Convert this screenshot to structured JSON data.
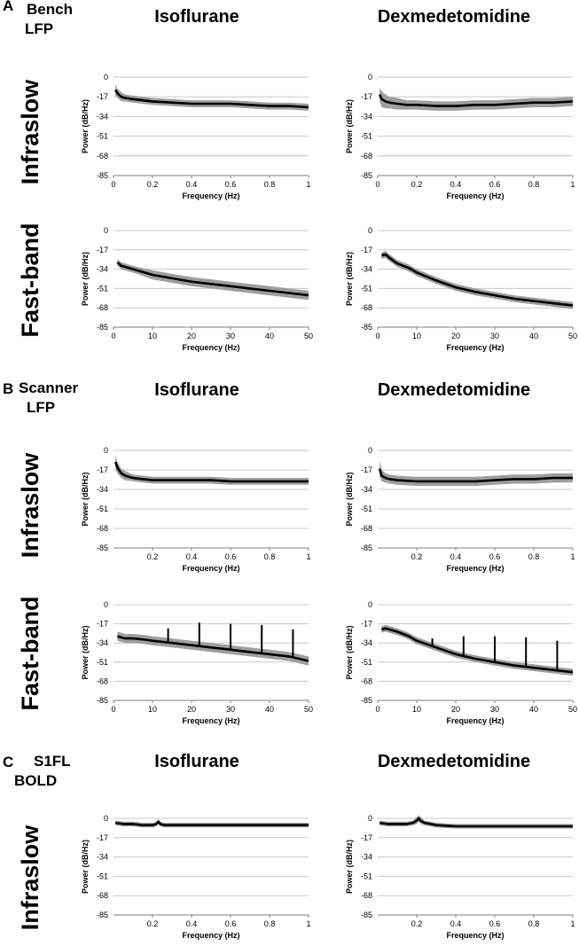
{
  "figure": {
    "sections": [
      {
        "letter": "A",
        "label_lines": [
          "Bench",
          "LFP"
        ]
      },
      {
        "letter": "B",
        "label_lines": [
          "Scanner",
          "LFP"
        ]
      },
      {
        "letter": "C",
        "label_lines": [
          "S1FL",
          "BOLD"
        ]
      }
    ],
    "columns": [
      "Isoflurane",
      "Dexmedetomidine"
    ],
    "rows": [
      "Infraslow",
      "Fast-band",
      "Infraslow",
      "Fast-band",
      "Infraslow"
    ],
    "colors": {
      "mean": "#000000",
      "band": "#9e9e9e",
      "grid": "#c8c8c8",
      "axis": "#7f7f7f"
    }
  },
  "chart_data": [
    {
      "id": "A-iso-infra",
      "type": "line",
      "section": "A",
      "anesthetic": "Isoflurane",
      "band": "Infraslow",
      "xlabel": "Frequency (Hz)",
      "ylabel": "Power (dB/Hz)",
      "xlim": [
        0,
        1
      ],
      "ylim": [
        -85,
        0
      ],
      "xticks": [
        0,
        0.2,
        0.4,
        0.6,
        0.8,
        1
      ],
      "xtick_labels": [
        "0",
        "0.2",
        "0.4",
        "0.6",
        "0.8",
        "1"
      ],
      "yticks": [
        0,
        -17,
        -34,
        -51,
        -68,
        -85
      ],
      "ytick_labels": [
        "0",
        "-17",
        "-34",
        "-51",
        "-68",
        "-85"
      ],
      "x": [
        0.01,
        0.02,
        0.04,
        0.06,
        0.1,
        0.2,
        0.3,
        0.4,
        0.5,
        0.6,
        0.7,
        0.8,
        0.9,
        1.0
      ],
      "mean": [
        -11,
        -14,
        -17,
        -18,
        -19,
        -21,
        -22,
        -23,
        -23,
        -23,
        -24,
        -25,
        -25,
        -26
      ],
      "spread": [
        5,
        4,
        4,
        3,
        3,
        3,
        3,
        3,
        3,
        3,
        3,
        3,
        3,
        3
      ]
    },
    {
      "id": "A-dex-infra",
      "type": "line",
      "section": "A",
      "anesthetic": "Dexmedetomidine",
      "band": "Infraslow",
      "xlabel": "Frequency (Hz)",
      "ylabel": "Power (dB/Hz)",
      "xlim": [
        0,
        1
      ],
      "ylim": [
        -85,
        0
      ],
      "xticks": [
        0,
        0.2,
        0.4,
        0.6,
        0.8,
        1
      ],
      "xtick_labels": [
        "0",
        "0.2",
        "0.4",
        "0.6",
        "0.8",
        "1"
      ],
      "yticks": [
        0,
        -17,
        -34,
        -51,
        -68,
        -85
      ],
      "ytick_labels": [
        "0",
        "-17",
        "-34",
        "-51",
        "-68",
        "-85"
      ],
      "x": [
        0.01,
        0.02,
        0.04,
        0.06,
        0.1,
        0.15,
        0.2,
        0.3,
        0.4,
        0.5,
        0.6,
        0.7,
        0.8,
        0.9,
        1.0
      ],
      "mean": [
        -15,
        -19,
        -21,
        -22,
        -23,
        -24,
        -24,
        -25,
        -25,
        -24,
        -24,
        -23,
        -22,
        -22,
        -21
      ],
      "spread": [
        6,
        7,
        6,
        5,
        5,
        4,
        4,
        4,
        4,
        4,
        4,
        4,
        4,
        4,
        4
      ]
    },
    {
      "id": "A-iso-fast",
      "type": "line",
      "section": "A",
      "anesthetic": "Isoflurane",
      "band": "Fast-band",
      "xlabel": "Frequency (Hz)",
      "ylabel": "Power (dB/Hz)",
      "xlim": [
        0,
        50
      ],
      "ylim": [
        -85,
        0
      ],
      "xticks": [
        0,
        10,
        20,
        30,
        40,
        50
      ],
      "xtick_labels": [
        "0",
        "10",
        "20",
        "30",
        "40",
        "50"
      ],
      "yticks": [
        0,
        -17,
        -34,
        -51,
        -68,
        -85
      ],
      "ytick_labels": [
        "0",
        "-17",
        "-34",
        "-51",
        "-68",
        "-85"
      ],
      "x": [
        1,
        2,
        4,
        6,
        10,
        15,
        20,
        25,
        30,
        35,
        40,
        45,
        50
      ],
      "mean": [
        -28,
        -31,
        -33,
        -35,
        -39,
        -42,
        -45,
        -47,
        -49,
        -51,
        -53,
        -55,
        -57
      ],
      "spread": [
        3,
        3,
        3,
        3,
        4,
        4,
        4,
        4,
        4,
        4,
        4,
        4,
        4
      ]
    },
    {
      "id": "A-dex-fast",
      "type": "line",
      "section": "A",
      "anesthetic": "Dexmedetomidine",
      "band": "Fast-band",
      "xlabel": "Frequency (Hz)",
      "ylabel": "Power (dB/Hz)",
      "xlim": [
        0,
        50
      ],
      "ylim": [
        -85,
        0
      ],
      "xticks": [
        0,
        10,
        20,
        30,
        40,
        50
      ],
      "xtick_labels": [
        "0",
        "10",
        "20",
        "30",
        "40",
        "50"
      ],
      "yticks": [
        0,
        -17,
        -34,
        -51,
        -68,
        -85
      ],
      "ytick_labels": [
        "0",
        "-17",
        "-34",
        "-51",
        "-68",
        "-85"
      ],
      "x": [
        1,
        2,
        3,
        5,
        8,
        10,
        15,
        20,
        25,
        30,
        35,
        40,
        45,
        50
      ],
      "mean": [
        -22,
        -21,
        -24,
        -29,
        -33,
        -37,
        -44,
        -50,
        -54,
        -57,
        -60,
        -62,
        -64,
        -66
      ],
      "spread": [
        3,
        3,
        3,
        3,
        3,
        3,
        3,
        3,
        3,
        3,
        3,
        3,
        3,
        3
      ]
    },
    {
      "id": "B-iso-infra",
      "type": "line",
      "section": "B",
      "anesthetic": "Isoflurane",
      "band": "Infraslow",
      "xlabel": "Frequency (Hz)",
      "ylabel": "Power (dB/Hz)",
      "xlim": [
        0,
        1
      ],
      "ylim": [
        -85,
        0
      ],
      "xticks": [
        0.2,
        0.4,
        0.6,
        0.8,
        1
      ],
      "xtick_labels": [
        "0.2",
        "0.4",
        "0.6",
        "0.8",
        "1"
      ],
      "yticks": [
        0,
        -17,
        -34,
        -51,
        -68,
        -85
      ],
      "ytick_labels": [
        "0",
        "-17",
        "-34",
        "-51",
        "-68",
        "-85"
      ],
      "x": [
        0.01,
        0.02,
        0.04,
        0.06,
        0.1,
        0.15,
        0.2,
        0.3,
        0.4,
        0.5,
        0.6,
        0.7,
        0.8,
        0.9,
        1.0
      ],
      "mean": [
        -10,
        -15,
        -20,
        -22,
        -24,
        -25,
        -26,
        -26,
        -26,
        -26,
        -27,
        -27,
        -27,
        -27,
        -27
      ],
      "spread": [
        6,
        5,
        4,
        4,
        3,
        3,
        3,
        3,
        3,
        3,
        3,
        3,
        3,
        3,
        3
      ]
    },
    {
      "id": "B-dex-infra",
      "type": "line",
      "section": "B",
      "anesthetic": "Dexmedetomidine",
      "band": "Infraslow",
      "xlabel": "Frequency (Hz)",
      "ylabel": "Power (dB/Hz)",
      "xlim": [
        0,
        1
      ],
      "ylim": [
        -85,
        0
      ],
      "xticks": [
        0.2,
        0.4,
        0.6,
        0.8,
        1
      ],
      "xtick_labels": [
        "0.2",
        "0.4",
        "0.6",
        "0.8",
        "1"
      ],
      "yticks": [
        0,
        -17,
        -34,
        -51,
        -68,
        -85
      ],
      "ytick_labels": [
        "0",
        "-17",
        "-34",
        "-51",
        "-68",
        "-85"
      ],
      "x": [
        0.01,
        0.02,
        0.04,
        0.06,
        0.1,
        0.2,
        0.3,
        0.4,
        0.5,
        0.6,
        0.7,
        0.8,
        0.9,
        1.0
      ],
      "mean": [
        -16,
        -22,
        -24,
        -25,
        -26,
        -27,
        -27,
        -27,
        -27,
        -26,
        -25,
        -25,
        -24,
        -24
      ],
      "spread": [
        7,
        5,
        4,
        4,
        4,
        4,
        4,
        4,
        4,
        4,
        4,
        4,
        4,
        4
      ]
    },
    {
      "id": "B-iso-fast",
      "type": "line",
      "section": "B",
      "anesthetic": "Isoflurane",
      "band": "Fast-band",
      "xlabel": "Frequency (Hz)",
      "ylabel": "Power (dB/Hz)",
      "xlim": [
        0,
        50
      ],
      "ylim": [
        -85,
        0
      ],
      "xticks": [
        0,
        10,
        20,
        30,
        40,
        50
      ],
      "xtick_labels": [
        "0",
        "10",
        "20",
        "30",
        "40",
        "50"
      ],
      "yticks": [
        0,
        -17,
        -34,
        -51,
        -68,
        -85
      ],
      "ytick_labels": [
        "0",
        "-17",
        "-34",
        "-51",
        "-68",
        "-85"
      ],
      "x": [
        1,
        3,
        5,
        8,
        10,
        15,
        20,
        25,
        30,
        35,
        40,
        45,
        50
      ],
      "mean": [
        -28,
        -30,
        -30,
        -31,
        -32,
        -34,
        -36,
        -38,
        -40,
        -42,
        -44,
        -46,
        -50
      ],
      "spread": [
        4,
        4,
        4,
        4,
        4,
        4,
        4,
        4,
        4,
        4,
        4,
        4,
        4
      ],
      "spikes": [
        {
          "x": 14,
          "peak": -21
        },
        {
          "x": 22,
          "peak": -16
        },
        {
          "x": 30,
          "peak": -17
        },
        {
          "x": 38,
          "peak": -18
        },
        {
          "x": 46,
          "peak": -22
        }
      ]
    },
    {
      "id": "B-dex-fast",
      "type": "line",
      "section": "B",
      "anesthetic": "Dexmedetomidine",
      "band": "Fast-band",
      "xlabel": "Frequency (Hz)",
      "ylabel": "Power (dB/Hz)",
      "xlim": [
        0,
        50
      ],
      "ylim": [
        -85,
        0
      ],
      "xticks": [
        0,
        10,
        20,
        30,
        40,
        50
      ],
      "xtick_labels": [
        "0",
        "10",
        "20",
        "30",
        "40",
        "50"
      ],
      "yticks": [
        0,
        -17,
        -34,
        -51,
        -68,
        -85
      ],
      "ytick_labels": [
        "0",
        "-17",
        "-34",
        "-51",
        "-68",
        "-85"
      ],
      "x": [
        1,
        2,
        3,
        5,
        8,
        10,
        15,
        20,
        25,
        30,
        35,
        40,
        45,
        50
      ],
      "mean": [
        -22,
        -21,
        -22,
        -24,
        -28,
        -32,
        -38,
        -44,
        -48,
        -51,
        -54,
        -56,
        -58,
        -60
      ],
      "spread": [
        3,
        3,
        3,
        3,
        3,
        3,
        3,
        3,
        3,
        3,
        3,
        3,
        3,
        3
      ],
      "spikes": [
        {
          "x": 14,
          "peak": -30
        },
        {
          "x": 22,
          "peak": -28
        },
        {
          "x": 30,
          "peak": -28
        },
        {
          "x": 38,
          "peak": -29
        },
        {
          "x": 46,
          "peak": -32
        }
      ]
    },
    {
      "id": "C-iso-infra",
      "type": "line",
      "section": "C",
      "anesthetic": "Isoflurane",
      "band": "Infraslow",
      "xlabel": "Frequency (Hz)",
      "ylabel": "Power (dB/Hz)",
      "xlim": [
        0,
        1
      ],
      "ylim": [
        -85,
        0
      ],
      "xticks": [
        0.2,
        0.4,
        0.6,
        0.8,
        1
      ],
      "xtick_labels": [
        "0.2",
        "0.4",
        "0.6",
        "0.8",
        "1"
      ],
      "yticks": [
        0,
        -17,
        -34,
        -51,
        -68,
        -85
      ],
      "ytick_labels": [
        "0",
        "-17",
        "-34",
        "-51",
        "-68",
        "-85"
      ],
      "x": [
        0.01,
        0.05,
        0.1,
        0.15,
        0.2,
        0.22,
        0.23,
        0.24,
        0.26,
        0.3,
        0.4,
        0.5,
        0.6,
        0.7,
        0.8,
        0.9,
        1.0
      ],
      "mean": [
        -4,
        -5,
        -5,
        -6,
        -6,
        -5,
        -3,
        -5,
        -6,
        -6,
        -6,
        -6,
        -6,
        -6,
        -6,
        -6,
        -6
      ],
      "spread": [
        2,
        2,
        2,
        2,
        2,
        2,
        2,
        2,
        2,
        2,
        2,
        2,
        2,
        2,
        2,
        2,
        2
      ]
    },
    {
      "id": "C-dex-infra",
      "type": "line",
      "section": "C",
      "anesthetic": "Dexmedetomidine",
      "band": "Infraslow",
      "xlabel": "Frequency (Hz)",
      "ylabel": "Power (dB/Hz)",
      "xlim": [
        0,
        1
      ],
      "ylim": [
        -85,
        0
      ],
      "xticks": [
        0.2,
        0.4,
        0.6,
        0.8,
        1
      ],
      "xtick_labels": [
        "0.2",
        "0.4",
        "0.6",
        "0.8",
        "1"
      ],
      "yticks": [
        0,
        -17,
        -34,
        -51,
        -68,
        -85
      ],
      "ytick_labels": [
        "0",
        "-17",
        "-34",
        "-51",
        "-68",
        "-85"
      ],
      "x": [
        0.01,
        0.05,
        0.1,
        0.15,
        0.18,
        0.2,
        0.21,
        0.22,
        0.24,
        0.27,
        0.3,
        0.4,
        0.5,
        0.6,
        0.7,
        0.8,
        0.9,
        1.0
      ],
      "mean": [
        -4,
        -5,
        -5,
        -5,
        -4,
        -2,
        0,
        -2,
        -4,
        -5,
        -6,
        -7,
        -7,
        -7,
        -7,
        -7,
        -7,
        -7
      ],
      "spread": [
        2,
        2,
        2,
        2,
        2,
        3,
        3,
        3,
        2,
        2,
        2,
        2,
        2,
        2,
        2,
        2,
        2,
        2
      ]
    }
  ]
}
